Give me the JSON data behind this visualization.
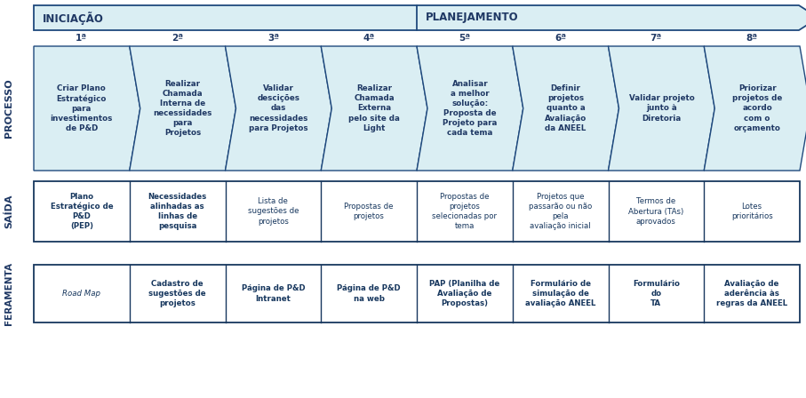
{
  "bg_color": "#ffffff",
  "arrow_fill": "#daeef3",
  "arrow_border": "#1f497d",
  "chevron_fill": "#daeef3",
  "chevron_border": "#1f497d",
  "table_border": "#17375e",
  "text_color_dark": "#1f3864",
  "text_color_teal": "#17375e",
  "label_processo": "PROCESSO",
  "label_saida": "SAÍDA",
  "label_ferramenta": "FERAMENTA",
  "arrow1_label": "INICIAÇÃO",
  "arrow2_label": "PLANEJAMENTO",
  "step_numbers": [
    "1ª",
    "2ª",
    "3ª",
    "4ª",
    "5ª",
    "6ª",
    "7ª",
    "8ª"
  ],
  "process_texts": [
    "Criar Plano\nEstratégico\npara\ninvestimentos\nde P&D",
    "Realizar\nChamada\nInterna de\nnecessidades\npara\nProjetos",
    "Validar\ndescições\ndas\nnecessidades\npara Projetos",
    "Realizar\nChamada\nExterna\npelo site da\nLight",
    "Analisar\na melhor\nsolução:\nProposta de\nProjeto para\ncada tema",
    "Definir\nprojetos\nquanto a\nAvaliação\nda ANEEL",
    "Validar projeto\njunto à\nDiretoria",
    "Priorizar\nprojetos de\nacordo\ncom o\norçamento"
  ],
  "saida_texts": [
    "Plano\nEstratégico de\nP&D\n(PEP)",
    "Necessidades\nalinhadas as\nlinhas de\npesquisa",
    "Lista de\nsugestões de\nprojetos",
    "Propostas de\nprojetos",
    "Propostas de\nprojetos\nselecionadas por\ntema",
    "Projetos que\npassarão ou não\npela\navaliação inicial",
    "Termos de\nAbertura (TAs)\naprovados",
    "Lotes\nprioritários"
  ],
  "ferramenta_texts": [
    "Road Map",
    "Cadastro de\nsugestões de\nprojetos",
    "Página de P&D\nIntranet",
    "Página de P&D\nna web",
    "PAP (Planilha de\nAvaliação de\nPropostas)",
    "Formulário de\nsimulação de\navaliação ANEEL",
    "Formulário\ndo\nTA",
    "Avaliação de\naderência às\nregras da ANEEL"
  ]
}
